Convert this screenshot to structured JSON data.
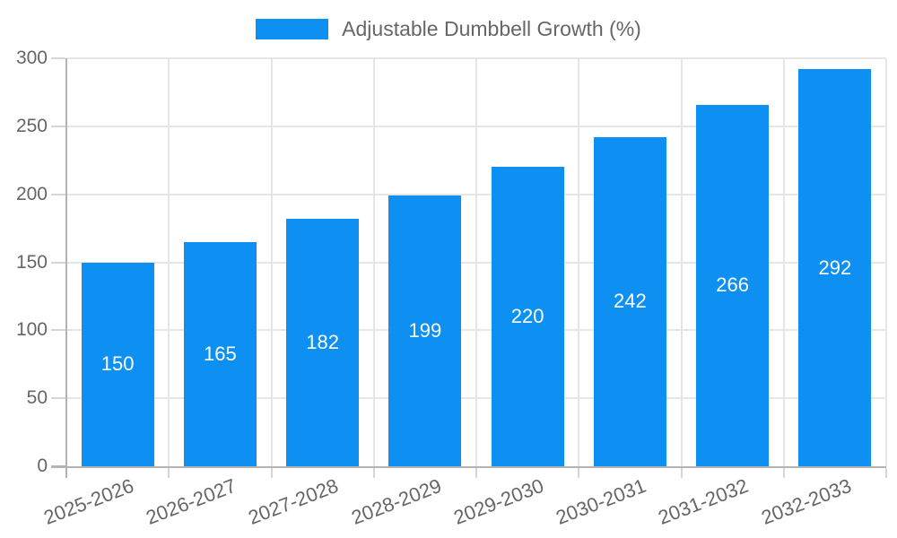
{
  "legend": {
    "label": "Adjustable Dumbbell Growth (%)"
  },
  "chart_data": {
    "type": "bar",
    "title": "Adjustable Dumbbell Growth (%)",
    "categories": [
      "2025-2026",
      "2026-2027",
      "2027-2028",
      "2028-2029",
      "2029-2030",
      "2030-2031",
      "2031-2032",
      "2032-2033"
    ],
    "values": [
      150,
      165,
      182,
      199,
      220,
      242,
      266,
      292
    ],
    "yticks": [
      0,
      50,
      100,
      150,
      200,
      250,
      300
    ],
    "ylim": [
      0,
      300
    ],
    "xlabel": "",
    "ylabel": "",
    "grid": true,
    "legend_position": "top-center",
    "x_tick_rotation_deg": 21,
    "colors": {
      "bar": "#0d90f2",
      "value_label": "#ffffff",
      "axis_line": "#b3b3b3",
      "grid_line": "#e6e6e6",
      "tick_stub": "#d6d6d6",
      "tick_text": "#666666",
      "legend_text": "#666666",
      "background": "#ffffff"
    }
  }
}
